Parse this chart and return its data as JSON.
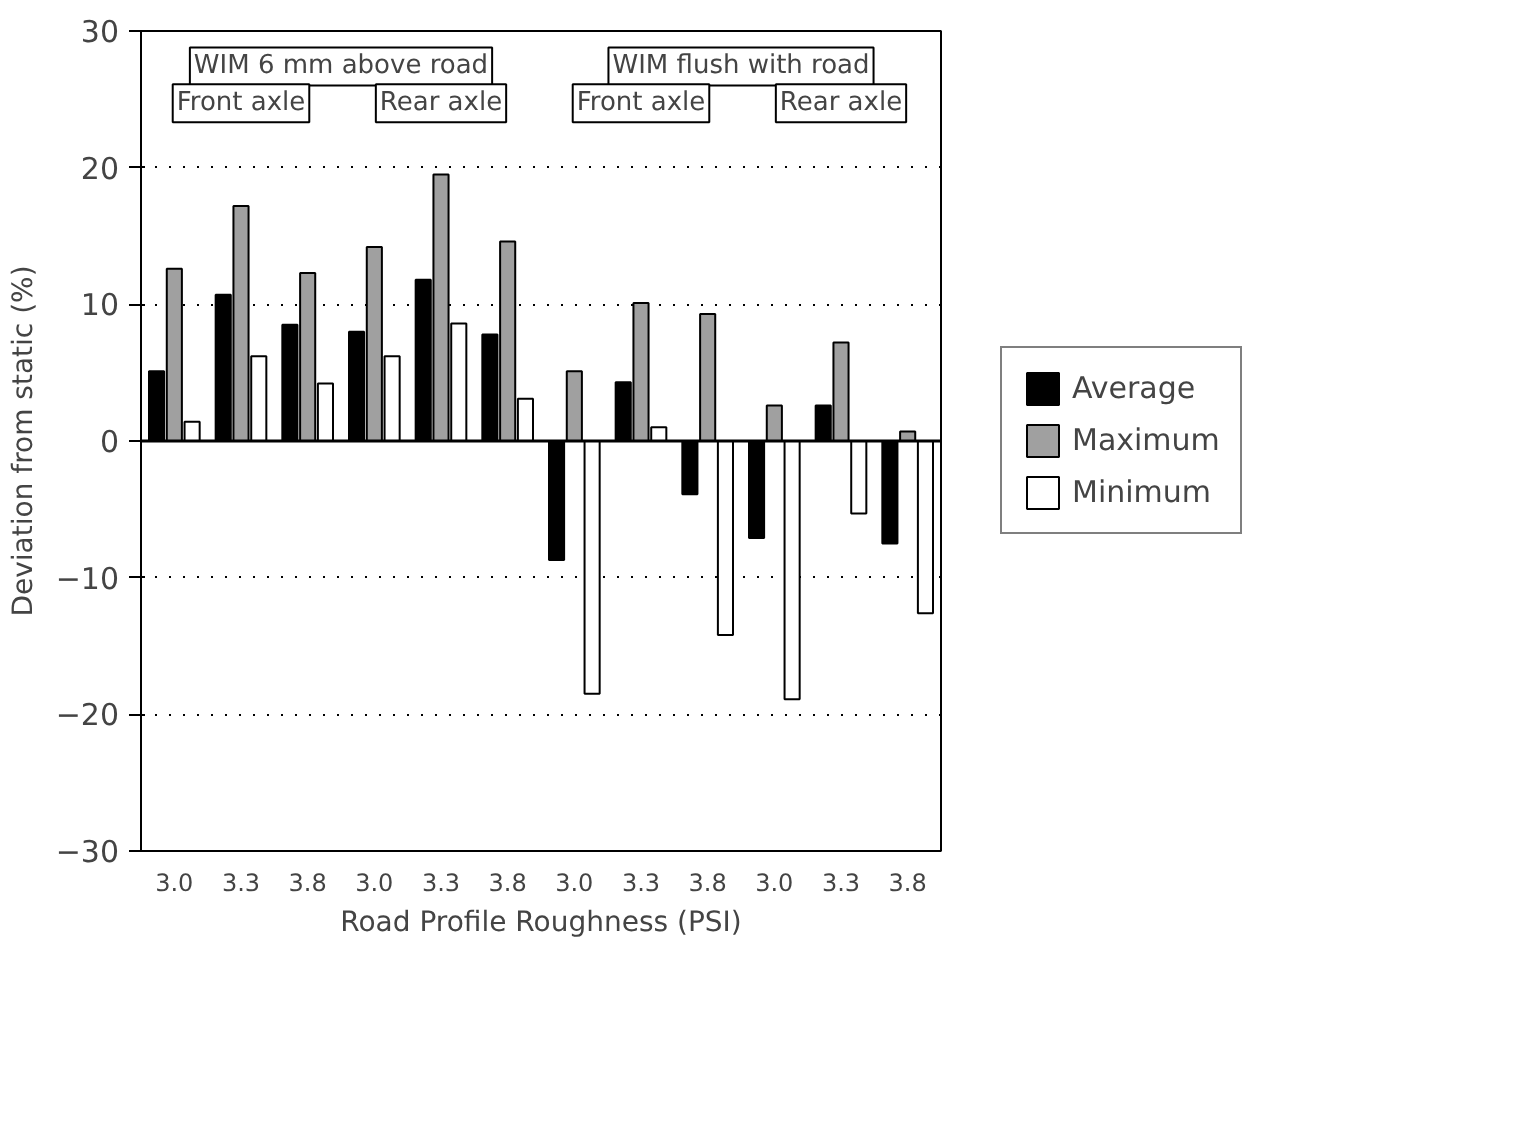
{
  "chart_data": {
    "type": "bar",
    "xlabel": "Road Profile Roughness (PSI)",
    "ylabel": "Deviation from static (%)",
    "categories": [
      "3.0",
      "3.3",
      "3.8",
      "3.0",
      "3.3",
      "3.8",
      "3.0",
      "3.3",
      "3.8",
      "3.0",
      "3.3",
      "3.8"
    ],
    "series": [
      {
        "name": "Average",
        "color": "#000000",
        "values": [
          5.1,
          10.7,
          8.5,
          8.0,
          11.8,
          7.8,
          -8.7,
          4.3,
          -3.9,
          -7.1,
          2.6,
          -7.5
        ]
      },
      {
        "name": "Maximum",
        "color": "#a0a0a0",
        "values": [
          12.6,
          17.2,
          12.3,
          14.2,
          19.5,
          14.6,
          5.1,
          10.1,
          9.3,
          2.6,
          7.2,
          0.7
        ]
      },
      {
        "name": "Minimum",
        "color": "#ffffff",
        "values": [
          1.4,
          6.2,
          4.2,
          6.2,
          8.6,
          3.1,
          -18.5,
          1.0,
          -14.2,
          -18.9,
          -5.3,
          -12.6
        ]
      }
    ],
    "ylim": [
      -30,
      30
    ],
    "yticks": [
      -30,
      -20,
      -10,
      0,
      10,
      20,
      30
    ],
    "grid": "y",
    "legend": "right",
    "annotations": [
      "WIM 6 mm above road",
      "WIM flush with road",
      "Front axle",
      "Rear axle",
      "Front axle",
      "Rear axle"
    ]
  }
}
